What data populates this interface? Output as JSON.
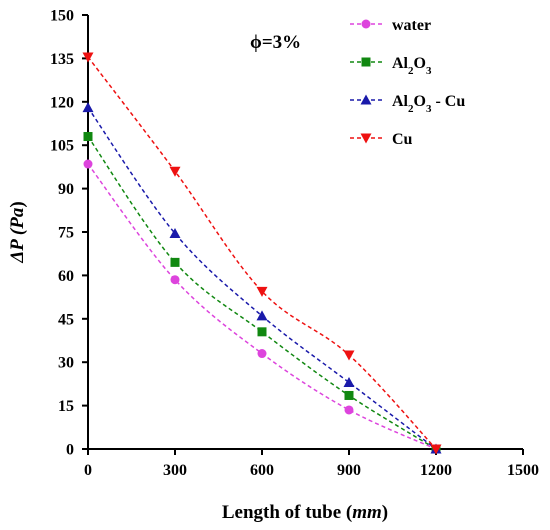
{
  "chart_data": {
    "type": "scatter",
    "xlabel": "Length of tube (mm)",
    "xlabel_main": "Length of tube (",
    "xlabel_unit": "mm",
    "xlabel_close": ")",
    "ylabel": "ΔP (Pa)",
    "ylabel_main": "ΔP (",
    "ylabel_unit": "Pa",
    "ylabel_close": ")",
    "annotation": "ϕ=3%",
    "xlim": [
      0,
      1500
    ],
    "ylim": [
      0,
      150
    ],
    "xticks": [
      0,
      300,
      600,
      900,
      1200,
      1500
    ],
    "yticks": [
      0,
      15,
      30,
      45,
      60,
      75,
      90,
      105,
      120,
      135,
      150
    ],
    "grid": false,
    "legend_position": "top-right",
    "x": [
      0,
      300,
      600,
      900,
      1200
    ],
    "series": [
      {
        "name": "water",
        "color": "#dd44dd",
        "marker": "circle",
        "values": [
          98.5,
          58.5,
          33,
          13.5,
          0
        ]
      },
      {
        "name": "Al2O3",
        "color": "#118811",
        "marker": "square",
        "values": [
          108,
          64.5,
          40.5,
          18.5,
          0
        ]
      },
      {
        "name": "Al2O3 - Cu",
        "color": "#1a1aaa",
        "marker": "triangle-up",
        "values": [
          118,
          74.5,
          46,
          23,
          0
        ]
      },
      {
        "name": "Cu",
        "color": "#ee1111",
        "marker": "triangle-down",
        "values": [
          135.5,
          96,
          54.5,
          32.5,
          0
        ]
      }
    ]
  }
}
